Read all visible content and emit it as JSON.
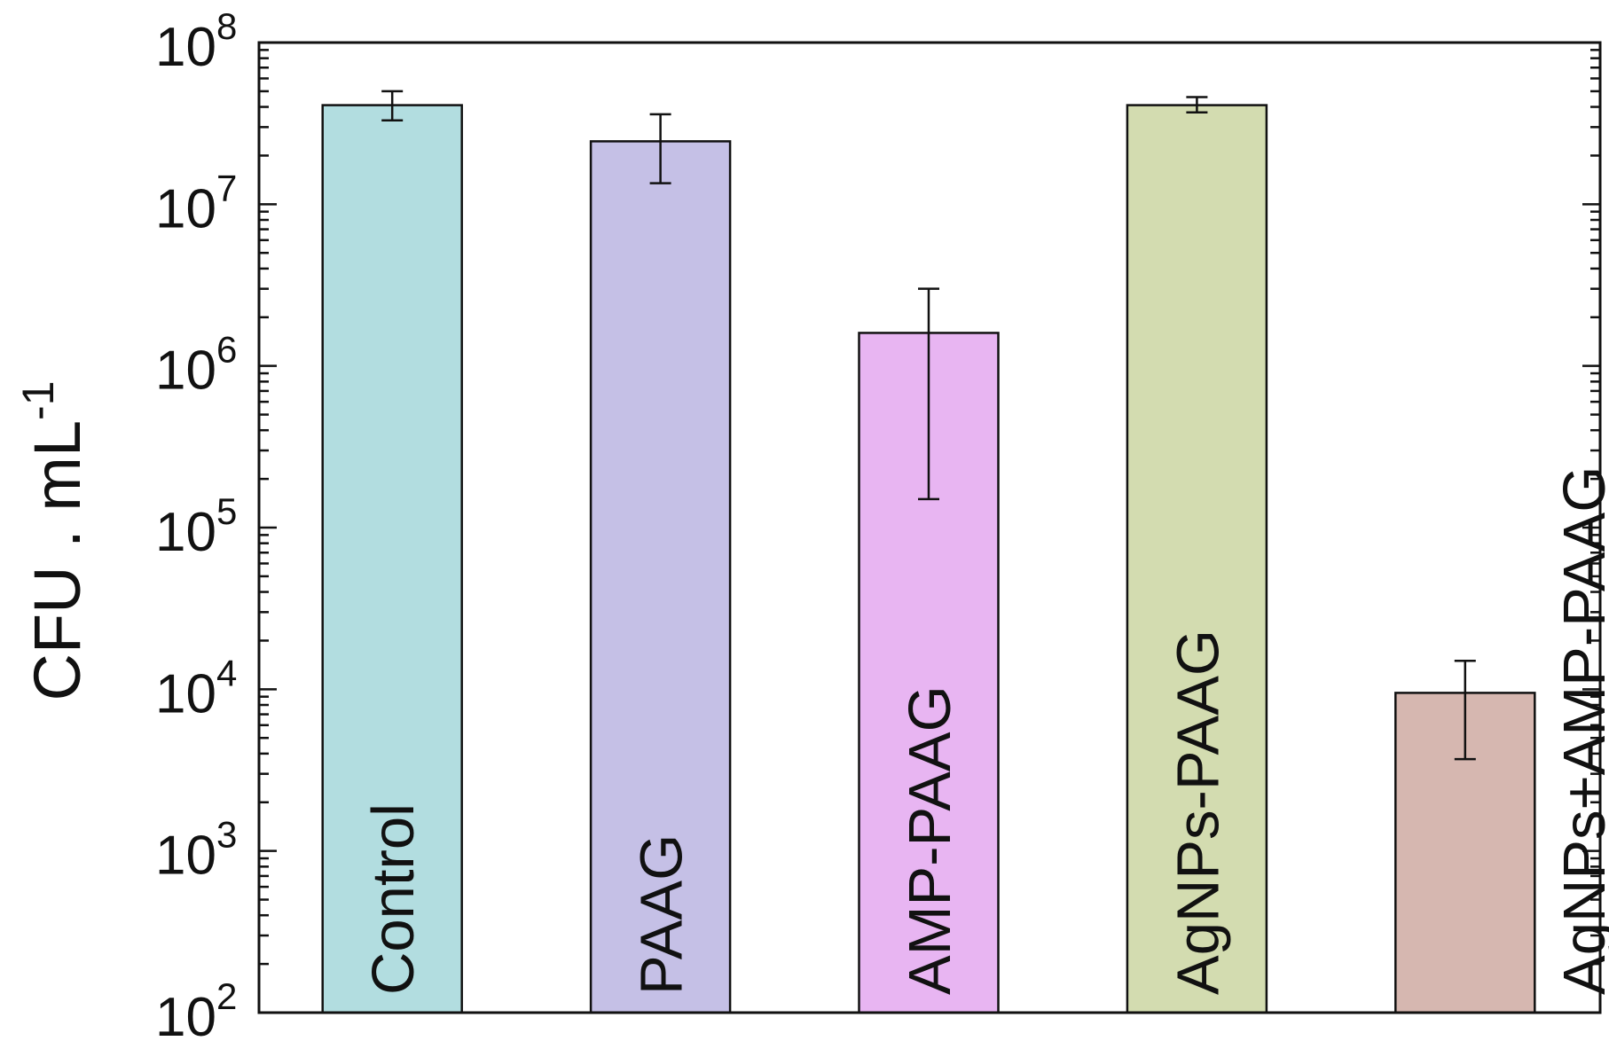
{
  "chart_data": {
    "type": "bar",
    "yscale": "log",
    "ylim": [
      100,
      100000000
    ],
    "ylabel_main": "CFU . mL",
    "ylabel_sup": "-1",
    "grid": false,
    "legend": "none",
    "y_ticks": [
      {
        "base": "10",
        "exp": "2"
      },
      {
        "base": "10",
        "exp": "3"
      },
      {
        "base": "10",
        "exp": "4"
      },
      {
        "base": "10",
        "exp": "5"
      },
      {
        "base": "10",
        "exp": "6"
      },
      {
        "base": "10",
        "exp": "7"
      },
      {
        "base": "10",
        "exp": "8"
      }
    ],
    "categories": [
      "Control",
      "PAAG",
      "AMP-PAAG",
      "AgNPs-PAAG",
      "AgNPs+AMP-PAAG"
    ],
    "values": [
      41000000,
      24500000,
      1600000,
      41000000,
      9500
    ],
    "error_low": [
      33000000,
      13500000,
      150000,
      37000000,
      3700
    ],
    "error_high": [
      50000000,
      36000000,
      3000000,
      46000000,
      15000
    ],
    "colors": [
      "#b2dde0",
      "#c5c0e6",
      "#e8b5f2",
      "#d3dcb0",
      "#d6b7b0"
    ]
  }
}
